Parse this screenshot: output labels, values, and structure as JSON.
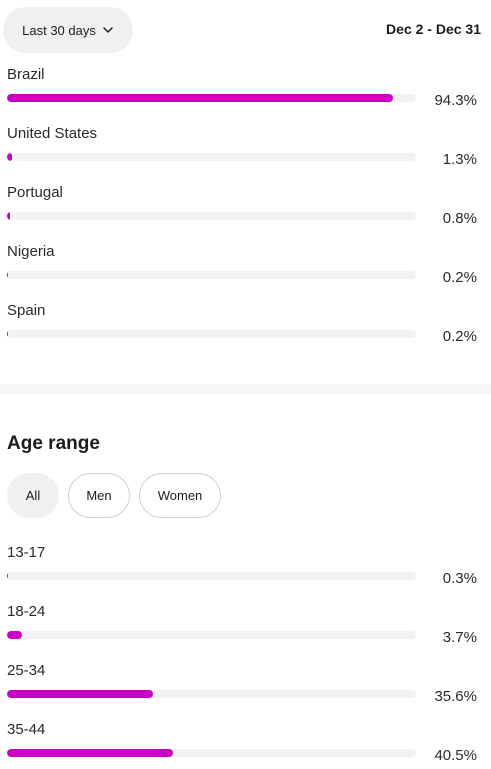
{
  "header": {
    "range_button_label": "Last 30 days",
    "date_range": "Dec 2 - Dec 31"
  },
  "countries": [
    {
      "label": "Brazil",
      "value_text": "94.3%",
      "value": 94.3
    },
    {
      "label": "United States",
      "value_text": "1.3%",
      "value": 1.3
    },
    {
      "label": "Portugal",
      "value_text": "0.8%",
      "value": 0.8
    },
    {
      "label": "Nigeria",
      "value_text": "0.2%",
      "value": 0.2
    },
    {
      "label": "Spain",
      "value_text": "0.2%",
      "value": 0.2
    }
  ],
  "age_section": {
    "title": "Age range",
    "filters": [
      "All",
      "Men",
      "Women"
    ],
    "active_filter": "All",
    "rows": [
      {
        "label": "13-17",
        "value_text": "0.3%",
        "value": 0.3
      },
      {
        "label": "18-24",
        "value_text": "3.7%",
        "value": 3.7
      },
      {
        "label": "25-34",
        "value_text": "35.6%",
        "value": 35.6
      },
      {
        "label": "35-44",
        "value_text": "40.5%",
        "value": 40.5
      }
    ]
  },
  "colors": {
    "bar_fill": "#cc00c2",
    "bar_track": "#f1f2f4",
    "active_chip": "#eff0f2"
  }
}
